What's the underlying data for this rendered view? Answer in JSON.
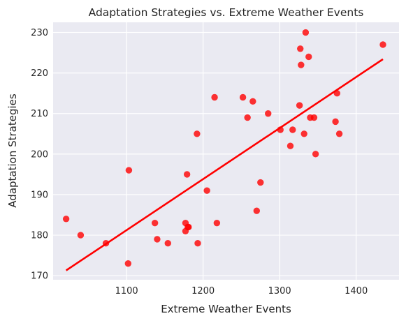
{
  "chart_data": {
    "type": "scatter",
    "title": "Adaptation Strategies vs. Extreme Weather Events",
    "xlabel": "Extreme Weather Events",
    "ylabel": "Adaptation Strategies",
    "xlim": [
      1004,
      1456
    ],
    "ylim": [
      169,
      232.5
    ],
    "xticks": [
      1100,
      1200,
      1300,
      1400
    ],
    "yticks": [
      170,
      180,
      190,
      200,
      210,
      220,
      230
    ],
    "grid": true,
    "background": "#eaeaf2",
    "point_color": "#ff0000",
    "line_color": "#ff0000",
    "points": [
      {
        "x": 1021,
        "y": 184
      },
      {
        "x": 1040,
        "y": 180
      },
      {
        "x": 1073,
        "y": 178
      },
      {
        "x": 1102,
        "y": 173
      },
      {
        "x": 1103,
        "y": 196
      },
      {
        "x": 1137,
        "y": 183
      },
      {
        "x": 1140,
        "y": 179
      },
      {
        "x": 1154,
        "y": 178
      },
      {
        "x": 1177,
        "y": 183
      },
      {
        "x": 1177,
        "y": 181
      },
      {
        "x": 1179,
        "y": 195
      },
      {
        "x": 1180,
        "y": 182
      },
      {
        "x": 1181,
        "y": 182
      },
      {
        "x": 1192,
        "y": 205
      },
      {
        "x": 1193,
        "y": 178
      },
      {
        "x": 1205,
        "y": 191
      },
      {
        "x": 1215,
        "y": 214
      },
      {
        "x": 1218,
        "y": 183
      },
      {
        "x": 1252,
        "y": 214
      },
      {
        "x": 1258,
        "y": 209
      },
      {
        "x": 1265,
        "y": 213
      },
      {
        "x": 1270,
        "y": 186
      },
      {
        "x": 1275,
        "y": 193
      },
      {
        "x": 1285,
        "y": 210
      },
      {
        "x": 1301,
        "y": 206
      },
      {
        "x": 1314,
        "y": 202
      },
      {
        "x": 1317,
        "y": 206
      },
      {
        "x": 1326,
        "y": 212
      },
      {
        "x": 1327,
        "y": 226
      },
      {
        "x": 1328,
        "y": 222
      },
      {
        "x": 1332,
        "y": 205
      },
      {
        "x": 1334,
        "y": 230
      },
      {
        "x": 1338,
        "y": 224
      },
      {
        "x": 1340,
        "y": 209
      },
      {
        "x": 1345,
        "y": 209
      },
      {
        "x": 1347,
        "y": 200
      },
      {
        "x": 1373,
        "y": 208
      },
      {
        "x": 1375,
        "y": 215
      },
      {
        "x": 1378,
        "y": 205
      },
      {
        "x": 1435,
        "y": 227
      }
    ],
    "regression_line": {
      "x": [
        1021,
        1435
      ],
      "y": [
        171.3,
        223.4
      ]
    }
  }
}
